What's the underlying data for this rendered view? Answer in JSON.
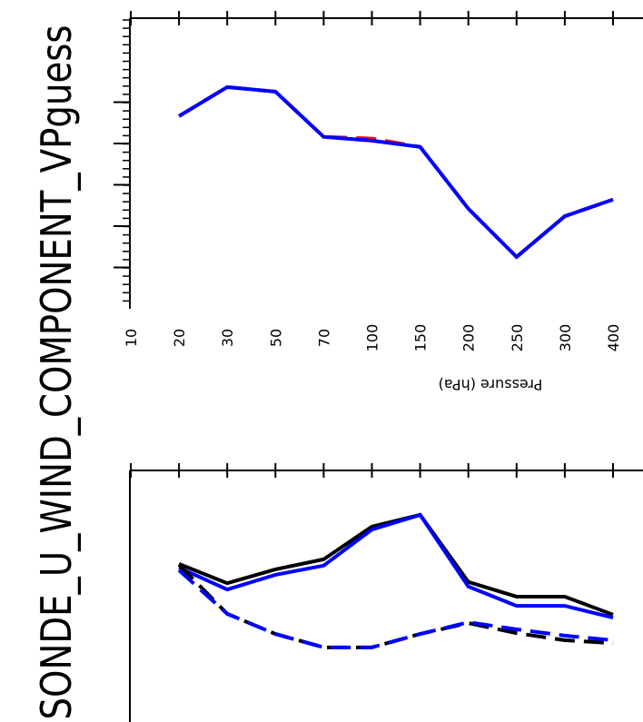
{
  "title": "SONDE_U_WIND_COMPONENT_VPguess",
  "chart_data": [
    {
      "type": "line",
      "x_label": "Pressure (hPa)",
      "categories": [
        "10",
        "20",
        "30",
        "50",
        "70",
        "100",
        "150",
        "200",
        "250",
        "300",
        "400"
      ],
      "ylim": [
        0,
        7
      ],
      "series": [
        {
          "color": "#ff0000",
          "dash": true,
          "values": [
            null,
            4.64,
            5.34,
            5.23,
            4.14,
            4.1,
            3.9,
            2.41,
            1.25,
            2.23,
            2.63
          ]
        },
        {
          "color": "#0000ff",
          "dash": false,
          "values": [
            null,
            4.64,
            5.34,
            5.23,
            4.14,
            4.05,
            3.9,
            2.41,
            1.25,
            2.23,
            2.63
          ]
        }
      ]
    },
    {
      "type": "line",
      "ylim": [
        0,
        6
      ],
      "series": [
        {
          "color": "#000000",
          "dash": false,
          "values": [
            null,
            3.77,
            3.31,
            3.64,
            3.88,
            4.66,
            4.94,
            3.34,
            2.99,
            2.99,
            2.56
          ]
        },
        {
          "color": "#0000ff",
          "dash": false,
          "values": [
            null,
            3.68,
            3.16,
            3.51,
            3.73,
            4.59,
            4.94,
            3.23,
            2.77,
            2.77,
            2.49
          ]
        },
        {
          "color": "#000000",
          "dash": true,
          "values": [
            null,
            3.75,
            2.58,
            2.1,
            1.78,
            1.78,
            2.1,
            2.36,
            2.12,
            1.95,
            1.88
          ]
        },
        {
          "color": "#0000ff",
          "dash": true,
          "values": [
            null,
            3.62,
            2.58,
            2.1,
            1.78,
            1.78,
            2.1,
            2.38,
            2.21,
            2.06,
            1.95
          ]
        }
      ]
    }
  ]
}
